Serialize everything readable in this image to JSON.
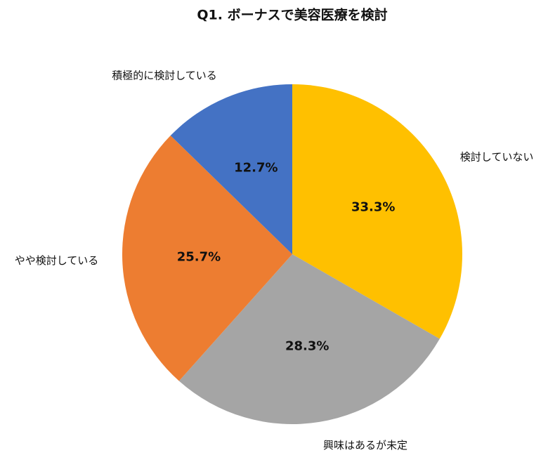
{
  "chart_data": {
    "type": "pie",
    "title": "Q1. ボーナスで美容医療を検討",
    "categories": [
      "検討していない",
      "興味はあるが未定",
      "やや検討している",
      "積極的に検討している"
    ],
    "values": [
      33.3,
      28.3,
      25.7,
      12.7
    ],
    "value_labels": [
      "33.3%",
      "28.3%",
      "25.7%",
      "12.7%"
    ],
    "colors": [
      "#ffc000",
      "#a5a5a5",
      "#ed7d31",
      "#4472c4"
    ]
  }
}
